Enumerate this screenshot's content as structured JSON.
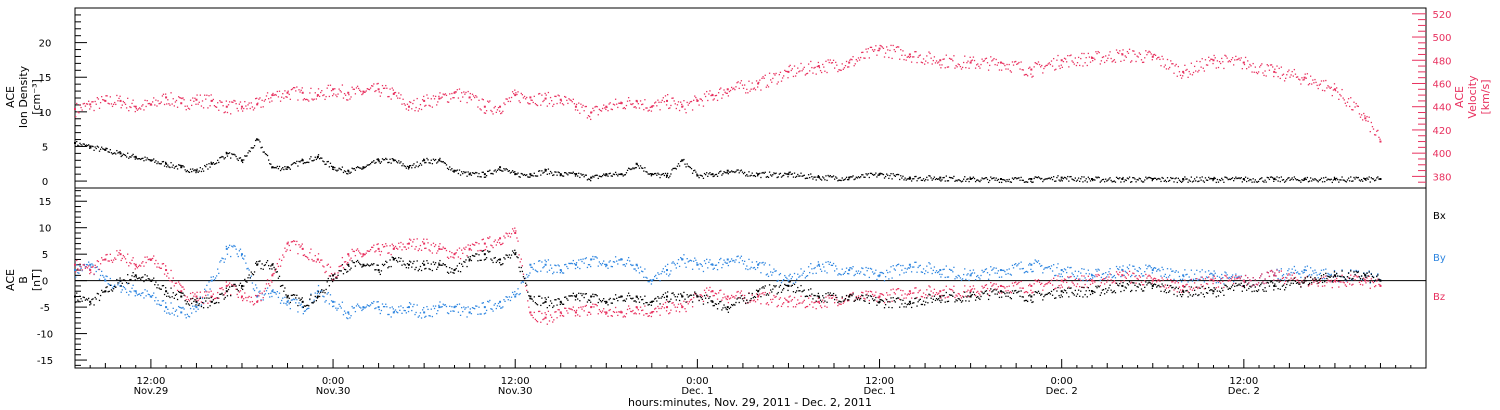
{
  "colors": {
    "black": "#000000",
    "red": "#e8315f",
    "blue": "#2f86e0"
  },
  "x_axis": {
    "tick_labels": [
      {
        "time": "12:00",
        "date": "Nov.29"
      },
      {
        "time": "0:00",
        "date": "Nov.30"
      },
      {
        "time": "12:00",
        "date": "Nov.30"
      },
      {
        "time": "0:00",
        "date": "Dec. 1"
      },
      {
        "time": "12:00",
        "date": "Dec. 1"
      },
      {
        "time": "0:00",
        "date": "Dec. 2"
      },
      {
        "time": "12:00",
        "date": "Dec. 2"
      }
    ],
    "title": "hours:minutes, Nov. 29, 2011 - Dec. 2, 2011"
  },
  "top_panel": {
    "left_label": [
      "ACE",
      "Ion Density",
      "[cm⁻³]"
    ],
    "right_label": [
      "ACE",
      "Velocity",
      "[km/s]"
    ],
    "left_ticks": [
      "0",
      "5",
      "10",
      "15",
      "20"
    ],
    "right_ticks": [
      "380",
      "400",
      "420",
      "440",
      "460",
      "480",
      "500",
      "520"
    ]
  },
  "bottom_panel": {
    "left_label": [
      "ACE",
      "B",
      "[nT]"
    ],
    "left_ticks": [
      "-15",
      "-10",
      "-5",
      "0",
      "5",
      "10",
      "15"
    ],
    "legend": [
      {
        "label": "Bx",
        "color": "#000000"
      },
      {
        "label": "By",
        "color": "#2f86e0"
      },
      {
        "label": "Bz",
        "color": "#e8315f"
      }
    ]
  },
  "chart_data": [
    {
      "type": "scatter",
      "title": "",
      "xlabel": "hours:minutes, Nov. 29, 2011 - Dec. 2, 2011",
      "x_unit": "hours since 2011-11-29 00:00 UT",
      "xlim": [
        7,
        96
      ],
      "series": [
        {
          "name": "Ion Density",
          "color": "#000000",
          "axis": "left",
          "ylabel": "ACE Ion Density [cm⁻³]",
          "ylim": [
            -1,
            25
          ],
          "x": [
            7,
            8,
            9,
            10,
            11,
            12,
            13,
            14,
            15,
            16,
            17,
            18,
            19,
            20,
            21,
            22,
            23,
            24,
            25,
            26,
            27,
            28,
            29,
            30,
            31,
            32,
            33,
            34,
            35,
            36,
            37,
            38,
            39,
            40,
            41,
            42,
            43,
            44,
            45,
            46,
            47,
            48,
            49,
            50,
            52,
            54,
            56,
            58,
            60,
            62,
            64,
            66,
            68,
            70,
            72,
            74,
            76,
            78,
            80,
            82,
            84,
            86,
            88,
            90,
            92,
            93
          ],
          "y": [
            5.5,
            5,
            4.5,
            4,
            3.5,
            3,
            2.5,
            2,
            1.5,
            2.5,
            4,
            3,
            6,
            2,
            2,
            3,
            3.5,
            2,
            1.5,
            2,
            3,
            3,
            2,
            3,
            3,
            1.5,
            1,
            1,
            2,
            1,
            1,
            1.5,
            1,
            1,
            0.5,
            1,
            1,
            2.5,
            1,
            0.8,
            3,
            0.8,
            1,
            1.5,
            1,
            1,
            0.6,
            0.5,
            1,
            0.5,
            0.5,
            0.3,
            0.3,
            0.3,
            0.5,
            0.3,
            0.3,
            0.3,
            0.3,
            0.3,
            0.3,
            0.3,
            0.3,
            0.3,
            0.3,
            0.3
          ]
        },
        {
          "name": "Velocity",
          "color": "#e8315f",
          "axis": "right",
          "ylabel": "ACE Velocity [km/s]",
          "ylim": [
            370,
            525
          ],
          "x": [
            7,
            8,
            9,
            10,
            11,
            12,
            13,
            14,
            15,
            16,
            17,
            18,
            19,
            20,
            21,
            22,
            23,
            24,
            25,
            26,
            27,
            28,
            29,
            30,
            31,
            32,
            33,
            34,
            35,
            36,
            37,
            38,
            39,
            40,
            41,
            42,
            43,
            44,
            45,
            46,
            47,
            48,
            49,
            50,
            52,
            54,
            56,
            58,
            60,
            62,
            64,
            66,
            68,
            70,
            72,
            74,
            76,
            78,
            80,
            82,
            84,
            86,
            88,
            90,
            92,
            93
          ],
          "y": [
            438,
            442,
            445,
            445,
            440,
            442,
            448,
            443,
            446,
            445,
            440,
            440,
            442,
            450,
            452,
            452,
            450,
            455,
            452,
            453,
            455,
            451,
            440,
            445,
            447,
            452,
            448,
            440,
            440,
            450,
            448,
            447,
            446,
            440,
            435,
            440,
            443,
            445,
            440,
            445,
            440,
            445,
            450,
            455,
            460,
            470,
            475,
            478,
            490,
            485,
            480,
            478,
            478,
            472,
            480,
            482,
            485,
            483,
            470,
            480,
            478,
            470,
            465,
            455,
            430,
            410
          ]
        }
      ]
    },
    {
      "type": "scatter",
      "title": "",
      "xlabel": "hours:minutes, Nov. 29, 2011 - Dec. 2, 2011",
      "ylabel": "ACE B [nT]",
      "ylim": [
        -16.5,
        17.5
      ],
      "xlim": [
        7,
        96
      ],
      "series": [
        {
          "name": "Bx",
          "color": "#000000",
          "x": [
            7,
            8,
            9,
            10,
            11,
            12,
            13,
            14,
            15,
            16,
            17,
            18,
            19,
            20,
            21,
            22,
            23,
            24,
            25,
            26,
            27,
            28,
            29,
            30,
            31,
            32,
            33,
            34,
            35,
            36,
            37,
            38,
            39,
            40,
            41,
            42,
            43,
            44,
            45,
            46,
            47,
            48,
            49,
            50,
            52,
            54,
            56,
            58,
            60,
            62,
            64,
            66,
            68,
            70,
            72,
            74,
            76,
            78,
            80,
            82,
            84,
            86,
            88,
            90,
            92,
            93
          ],
          "y": [
            -3,
            -4,
            -2,
            0,
            1,
            0,
            -2,
            -3,
            -4,
            -4,
            -2,
            -1,
            3,
            3,
            -3,
            -4,
            -3,
            1,
            3,
            3,
            2,
            4,
            3,
            3,
            3,
            2,
            4,
            5,
            4,
            5,
            -3,
            -4,
            -4,
            -3,
            -3,
            -4,
            -3,
            -3,
            -4,
            -3,
            -3,
            -3,
            -4,
            -5,
            -2,
            -1,
            -3,
            -3,
            -4,
            -4,
            -3,
            -3,
            -2,
            -3,
            -2,
            -2,
            -1,
            -1,
            -2,
            -2,
            -1,
            -1,
            0,
            1,
            1,
            0
          ]
        },
        {
          "name": "By",
          "color": "#2f86e0",
          "x": [
            7,
            8,
            9,
            10,
            11,
            12,
            13,
            14,
            15,
            16,
            17,
            18,
            19,
            20,
            21,
            22,
            23,
            24,
            25,
            26,
            27,
            28,
            29,
            30,
            31,
            32,
            33,
            34,
            35,
            36,
            37,
            38,
            39,
            40,
            41,
            42,
            43,
            44,
            45,
            46,
            47,
            48,
            49,
            50,
            52,
            54,
            56,
            58,
            60,
            62,
            64,
            66,
            68,
            70,
            72,
            74,
            76,
            78,
            80,
            82,
            84,
            86,
            88,
            90,
            92,
            93
          ],
          "y": [
            2,
            3,
            0,
            -1,
            -2,
            -3,
            -5,
            -6,
            -5,
            0,
            6,
            5,
            -3,
            -2,
            -4,
            -5,
            -2,
            -4,
            -6,
            -5,
            -5,
            -6,
            -5,
            -6,
            -5,
            -5,
            -6,
            -5,
            -4,
            -3,
            3,
            3,
            2,
            3,
            4,
            3,
            4,
            3,
            0,
            2,
            4,
            3,
            3,
            4,
            3,
            0,
            3,
            2,
            1,
            3,
            2,
            1,
            2,
            3,
            2,
            1,
            2,
            2,
            1,
            1,
            0,
            1,
            2,
            1,
            1,
            0
          ]
        },
        {
          "name": "Bz",
          "color": "#e8315f",
          "x": [
            7,
            8,
            9,
            10,
            11,
            12,
            13,
            14,
            15,
            16,
            17,
            18,
            19,
            20,
            21,
            22,
            23,
            24,
            25,
            26,
            27,
            28,
            29,
            30,
            31,
            32,
            33,
            34,
            35,
            36,
            37,
            38,
            39,
            40,
            41,
            42,
            43,
            44,
            45,
            46,
            47,
            48,
            49,
            50,
            52,
            54,
            56,
            58,
            60,
            62,
            64,
            66,
            68,
            70,
            72,
            74,
            76,
            78,
            80,
            82,
            84,
            86,
            88,
            90,
            92,
            93
          ],
          "y": [
            3,
            2,
            4,
            5,
            3,
            4,
            2,
            -2,
            -3,
            -3,
            -1,
            -3,
            -4,
            1,
            7,
            6,
            4,
            1,
            5,
            5,
            6,
            6,
            7,
            7,
            6,
            5,
            6,
            7,
            8,
            9,
            -6,
            -7,
            -6,
            -6,
            -5,
            -6,
            -6,
            -5,
            -6,
            -5,
            -5,
            -3,
            -2,
            -3,
            -3,
            -4,
            -4,
            -3,
            -3,
            -2,
            -2,
            -2,
            -1,
            -1,
            0,
            0,
            1,
            0,
            -1,
            0,
            0,
            1,
            0,
            0,
            0,
            -1
          ]
        }
      ]
    }
  ]
}
